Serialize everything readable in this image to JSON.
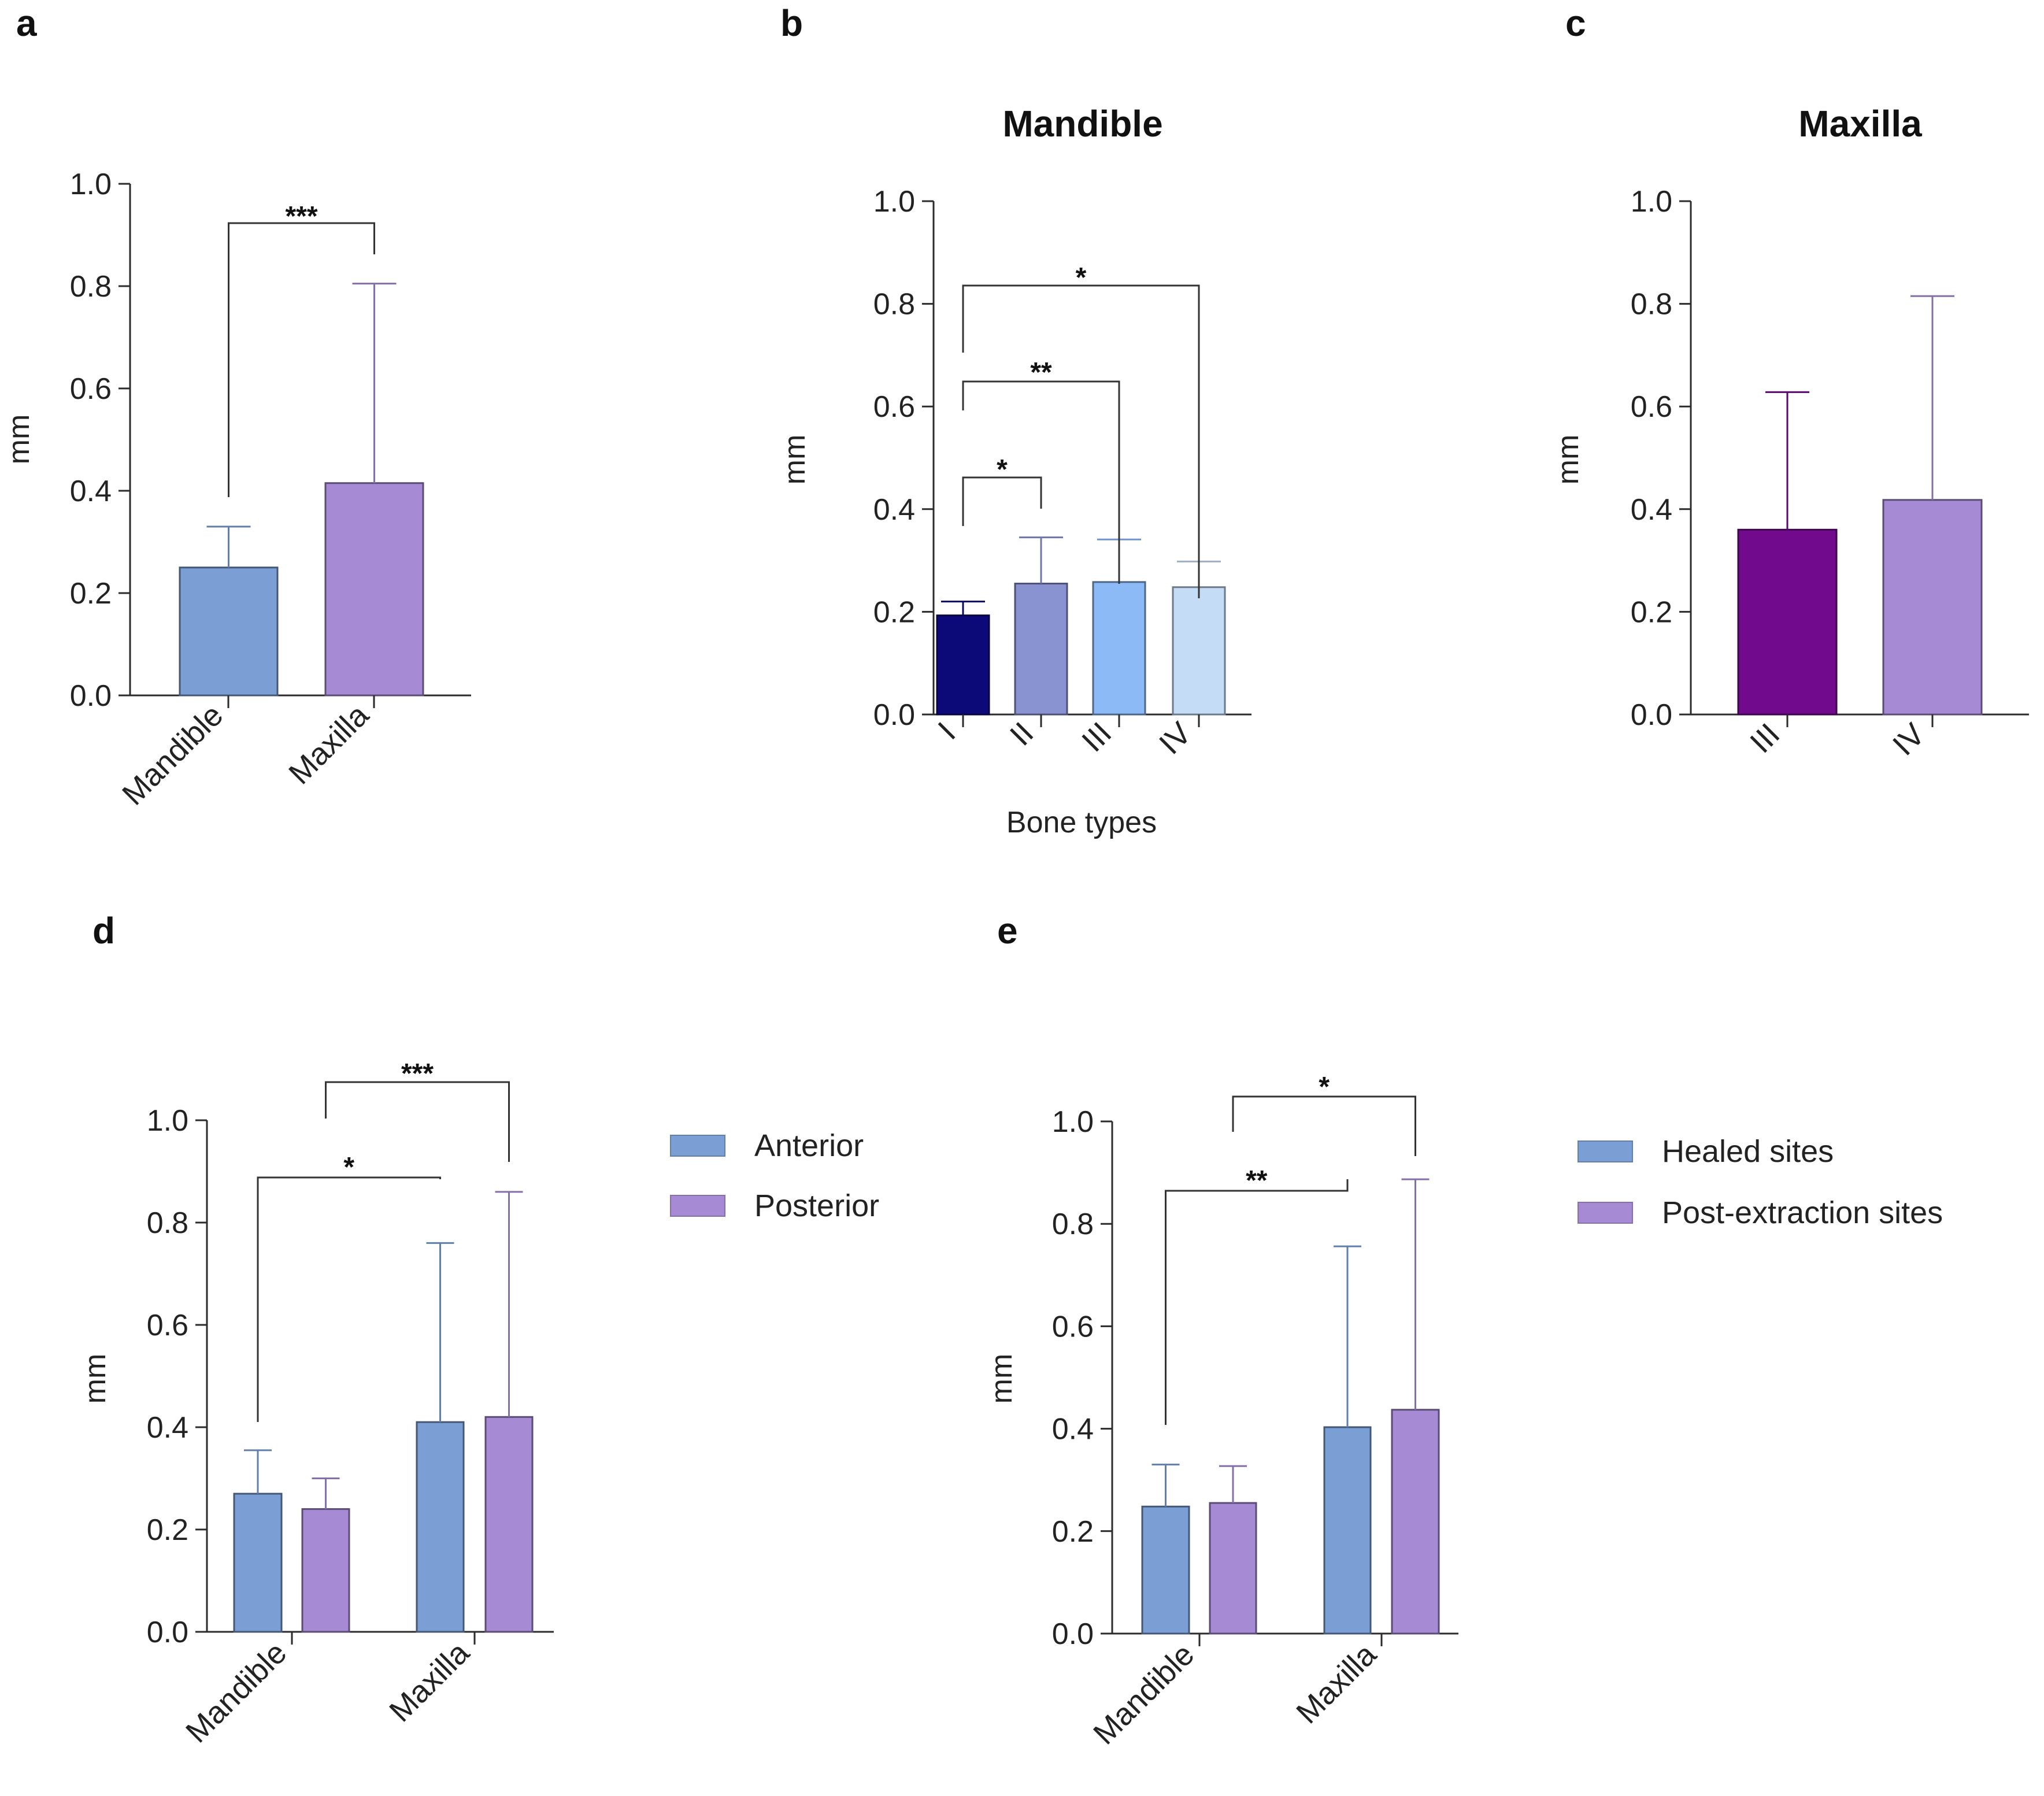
{
  "chart_data": [
    {
      "id": "a",
      "panel": "a",
      "type": "bar",
      "title": "",
      "xlabel": "",
      "ylabel": "mm",
      "ylim": [
        0,
        1.0
      ],
      "yticks": [
        "0.0",
        "0.2",
        "0.4",
        "0.6",
        "0.8",
        "1.0"
      ],
      "categories": [
        "Mandible",
        "Maxilla"
      ],
      "series": [
        {
          "name": "",
          "values": [
            0.25,
            0.415
          ],
          "errors": [
            0.08,
            0.39
          ],
          "colors": [
            "#7b9fd4",
            "#a68bd4"
          ]
        }
      ],
      "significance": [
        {
          "label": "***",
          "from": "Mandible",
          "to": "Maxilla"
        }
      ]
    },
    {
      "id": "b",
      "panel": "b",
      "type": "bar",
      "title": "Mandible",
      "xlabel": "Bone types",
      "ylabel": "mm",
      "ylim": [
        0,
        1.0
      ],
      "yticks": [
        "0.0",
        "0.2",
        "0.4",
        "0.6",
        "0.8",
        "1.0"
      ],
      "categories": [
        "I",
        "II",
        "III",
        "IV"
      ],
      "series": [
        {
          "name": "",
          "values": [
            0.193,
            0.255,
            0.258,
            0.248
          ],
          "errors": [
            0.027,
            0.09,
            0.083,
            0.05
          ],
          "colors": [
            "#0c0a78",
            "#8a93d2",
            "#8cbaf7",
            "#c5dcf7"
          ]
        }
      ],
      "significance": [
        {
          "label": "*",
          "from": "I",
          "to": "II"
        },
        {
          "label": "**",
          "from": "I",
          "to": "III"
        },
        {
          "label": "*",
          "from": "I",
          "to": "IV"
        }
      ]
    },
    {
      "id": "c",
      "panel": "c",
      "type": "bar",
      "title": "Maxilla",
      "xlabel": "",
      "ylabel": "mm",
      "ylim": [
        0,
        1.0
      ],
      "yticks": [
        "0.0",
        "0.2",
        "0.4",
        "0.6",
        "0.8",
        "1.0"
      ],
      "categories": [
        "III",
        "IV"
      ],
      "series": [
        {
          "name": "",
          "values": [
            0.36,
            0.418
          ],
          "errors": [
            0.268,
            0.397
          ],
          "colors": [
            "#720a8e",
            "#a68bd4"
          ]
        }
      ],
      "significance": []
    },
    {
      "id": "d",
      "panel": "d",
      "type": "bar",
      "title": "",
      "xlabel": "",
      "ylabel": "mm",
      "ylim": [
        0,
        1.0
      ],
      "yticks": [
        "0.0",
        "0.2",
        "0.4",
        "0.6",
        "0.8",
        "1.0"
      ],
      "categories": [
        "Mandible",
        "Maxilla"
      ],
      "series": [
        {
          "name": "Anterior",
          "color": "#7b9fd4",
          "values": [
            0.27,
            0.41
          ],
          "errors": [
            0.085,
            0.35
          ]
        },
        {
          "name": "Posterior",
          "color": "#a68bd4",
          "values": [
            0.24,
            0.42
          ],
          "errors": [
            0.06,
            0.44
          ]
        }
      ],
      "significance": [
        {
          "label": "*",
          "from": "Mandible / Anterior",
          "to": "Maxilla / Anterior"
        },
        {
          "label": "***",
          "from": "Mandible / Posterior",
          "to": "Maxilla / Posterior"
        }
      ]
    },
    {
      "id": "e",
      "panel": "e",
      "type": "bar",
      "title": "",
      "xlabel": "",
      "ylabel": "mm",
      "ylim": [
        0,
        1.0
      ],
      "yticks": [
        "0.0",
        "0.2",
        "0.4",
        "0.6",
        "0.8",
        "1.0"
      ],
      "categories": [
        "Mandible",
        "Maxilla"
      ],
      "series": [
        {
          "name": "Healed sites",
          "color": "#7b9fd4",
          "values": [
            0.248,
            0.403
          ],
          "errors": [
            0.082,
            0.353
          ]
        },
        {
          "name": "Post-extraction sites",
          "color": "#a68bd4",
          "values": [
            0.255,
            0.437
          ],
          "errors": [
            0.072,
            0.45
          ]
        }
      ],
      "significance": [
        {
          "label": "**",
          "from": "Mandible / Healed sites",
          "to": "Maxilla / Healed sites"
        },
        {
          "label": "*",
          "from": "Mandible / Post-extraction sites",
          "to": "Maxilla / Post-extraction sites"
        }
      ]
    }
  ]
}
